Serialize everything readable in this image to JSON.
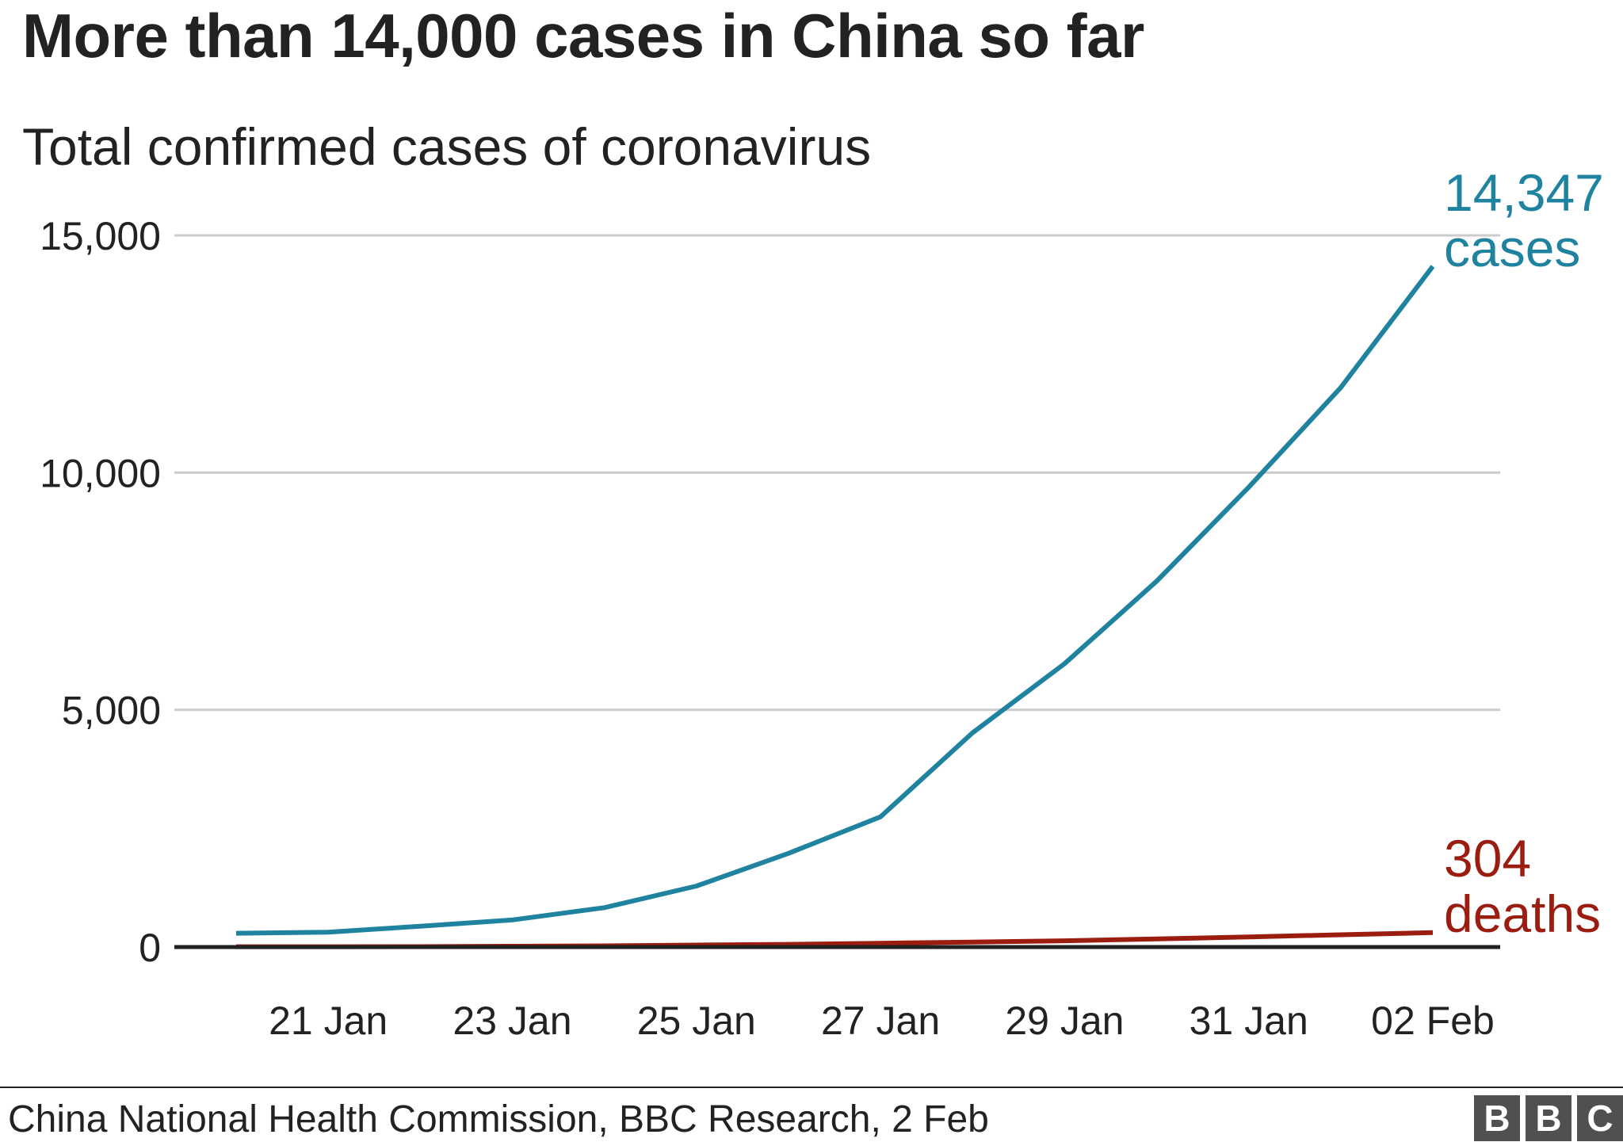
{
  "title": "More than 14,000 cases in China so far",
  "subtitle": "Total confirmed cases of coronavirus",
  "source": "China National Health Commission, BBC Research, 2 Feb",
  "logo": {
    "letters": [
      "B",
      "B",
      "C"
    ]
  },
  "colors": {
    "cases": "#1f83a0",
    "deaths": "#9b1d10",
    "grid": "#cccccc",
    "baseline": "#222222",
    "text": "#222222"
  },
  "chart_data": {
    "type": "line",
    "title": "More than 14,000 cases in China so far",
    "subtitle": "Total confirmed cases of coronavirus",
    "xlabel": "",
    "ylabel": "",
    "ylim": [
      0,
      15000
    ],
    "y_ticks": [
      0,
      5000,
      10000,
      15000
    ],
    "y_tick_labels": [
      "0",
      "5,000",
      "10,000",
      "15,000"
    ],
    "x_tick_dates": [
      "2020-01-21",
      "2020-01-23",
      "2020-01-25",
      "2020-01-27",
      "2020-01-29",
      "2020-01-31",
      "2020-02-02"
    ],
    "x_tick_labels": [
      "21 Jan",
      "23 Jan",
      "25 Jan",
      "27 Jan",
      "29 Jan",
      "31 Jan",
      "02 Feb"
    ],
    "grid": true,
    "dates": [
      "2020-01-20",
      "2020-01-21",
      "2020-01-22",
      "2020-01-23",
      "2020-01-24",
      "2020-01-25",
      "2020-01-26",
      "2020-01-27",
      "2020-01-28",
      "2020-01-29",
      "2020-01-30",
      "2020-01-31",
      "2020-02-01",
      "2020-02-02"
    ],
    "series": [
      {
        "name": "cases",
        "values": [
          291,
          314,
          440,
          571,
          830,
          1287,
          1975,
          2744,
          4515,
          5974,
          7711,
          9692,
          11791,
          14347
        ],
        "end_label": [
          "14,347",
          "cases"
        ]
      },
      {
        "name": "deaths",
        "values": [
          6,
          6,
          9,
          17,
          25,
          41,
          56,
          80,
          106,
          132,
          170,
          213,
          259,
          304
        ],
        "end_label": [
          "304",
          "deaths"
        ]
      }
    ]
  }
}
